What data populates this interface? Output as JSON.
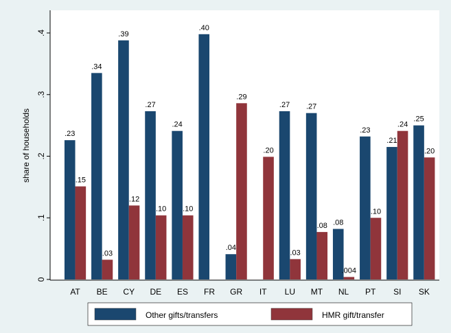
{
  "chart_data": {
    "type": "bar",
    "y_label": "share of households",
    "categories": [
      "AT",
      "BE",
      "CY",
      "DE",
      "ES",
      "FR",
      "GR",
      "IT",
      "LU",
      "MT",
      "NL",
      "PT",
      "SI",
      "SK"
    ],
    "series": [
      {
        "name": "Other gifts/transfers",
        "color": "#1a476f",
        "values": [
          0.226,
          0.335,
          0.388,
          0.273,
          0.241,
          0.398,
          0.041,
          null,
          0.273,
          0.27,
          0.082,
          0.232,
          0.215,
          0.25
        ],
        "value_labels": [
          ".23",
          ".34",
          ".39",
          ".27",
          ".24",
          ".40",
          ".04",
          null,
          ".27",
          ".27",
          ".08",
          ".23",
          ".21",
          ".25"
        ]
      },
      {
        "name": "HMR gift/transfer",
        "color": "#90353b",
        "values": [
          0.151,
          0.032,
          0.12,
          0.104,
          0.104,
          null,
          0.286,
          0.199,
          0.033,
          0.077,
          0.004,
          0.1,
          0.241,
          0.198
        ],
        "value_labels": [
          ".15",
          ".03",
          ".12",
          ".10",
          ".10",
          null,
          ".29",
          ".20",
          ".03",
          ".08",
          ".004",
          ".10",
          ".24",
          ".20"
        ]
      }
    ],
    "ylim": [
      0,
      0.4
    ],
    "yticks": [
      0,
      {
        "value": 0.1,
        "label": ".1"
      },
      {
        "value": 0.2,
        "label": ".2"
      },
      {
        "value": 0.3,
        "label": ".3"
      },
      {
        "value": 0.4,
        "label": ".4"
      }
    ],
    "grid": false
  }
}
